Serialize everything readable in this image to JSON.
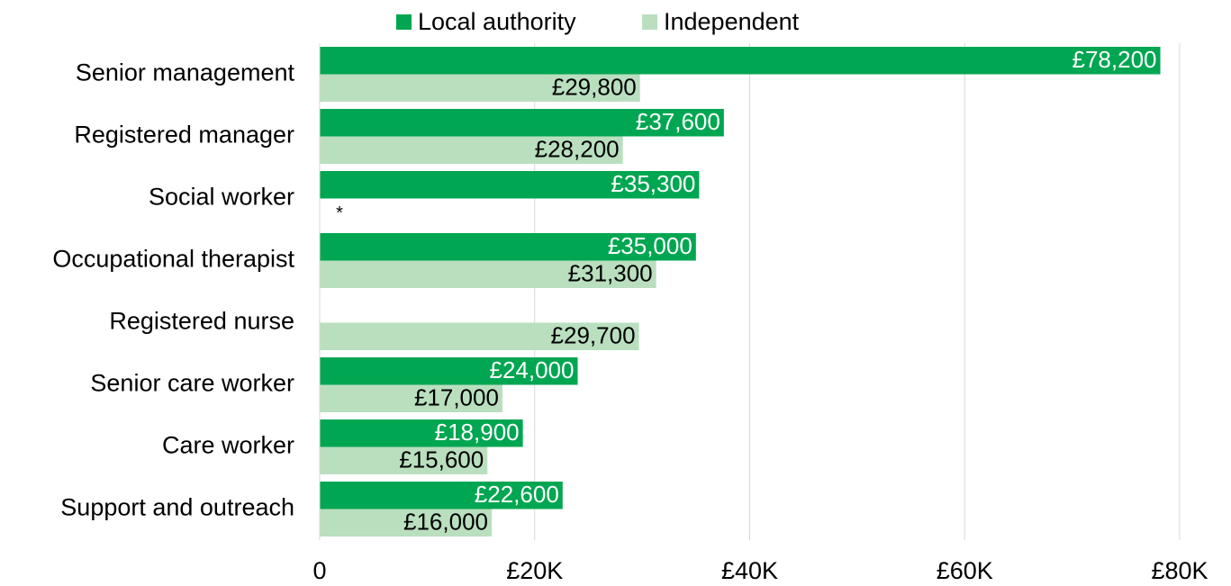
{
  "chart_data": {
    "type": "hbar",
    "categories": [
      "Senior management",
      "Registered manager",
      "Social worker",
      "Occupational therapist",
      "Registered nurse",
      "Senior care worker",
      "Care worker",
      "Support and outreach"
    ],
    "series": [
      {
        "name": "Local authority",
        "color": "#00a651",
        "values": [
          78200,
          37600,
          35300,
          35000,
          null,
          24000,
          18900,
          22600
        ],
        "value_labels": [
          "£78,200",
          "£37,600",
          "£35,300",
          "£35,000",
          null,
          "£24,000",
          "£18,900",
          "£22,600"
        ]
      },
      {
        "name": "Independent",
        "color": "#b9dfbf",
        "values": [
          29800,
          28200,
          null,
          31300,
          29700,
          17000,
          15600,
          16000
        ],
        "value_labels": [
          "£29,800",
          "£28,200",
          "*",
          "£31,300",
          "£29,700",
          "£17,000",
          "£15,600",
          "£16,000"
        ]
      }
    ],
    "xlim": [
      0,
      80000
    ],
    "xticks": [
      0,
      {
        "value": 20000,
        "label": "£20K"
      },
      {
        "value": 40000,
        "label": "£40K"
      },
      {
        "value": 60000,
        "label": "£60K"
      },
      {
        "value": 80000,
        "label": "£80K"
      }
    ],
    "grid": true,
    "legend": "top"
  }
}
